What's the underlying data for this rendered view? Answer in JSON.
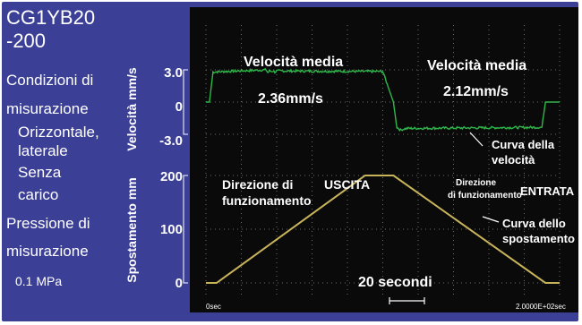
{
  "left_panel": {
    "title_line1": "CG1YB20",
    "title_line2": "-200",
    "cond_line1": "Condizioni di",
    "cond_line2": "misurazione",
    "cond_line3": "Orizzontale,",
    "cond_line4": "laterale",
    "cond_line5": "Senza",
    "cond_line6": "carico",
    "press_line1": "Pressione di",
    "press_line2": "misurazione",
    "press_value": "0.1 MPa"
  },
  "axes": {
    "velocity_label": "Velocità mm/s",
    "displacement_label": "Spostamento mm",
    "velocity_ticks": [
      "3.0",
      "0",
      "-3.0"
    ],
    "displacement_ticks": [
      "200",
      "100",
      "0"
    ]
  },
  "annotations": {
    "avg_speed_left": "Velocità media",
    "avg_speed_left_value": "2.36mm/s",
    "avg_speed_right": "Velocità media",
    "avg_speed_right_value": "2.12mm/s",
    "velocity_curve_line1": "Curva della",
    "velocity_curve_line2": "velocità",
    "dir_out_line1": "Direzione di",
    "dir_out_line2": "funzionamento",
    "dir_out_word": "USCITA",
    "dir_in_line1": "Direzione",
    "dir_in_line2": "di funzionamento",
    "dir_in_word": "ENTRATA",
    "disp_curve_line1": "Curva dello",
    "disp_curve_line2": "spostamento",
    "time_scale": "20 secondi",
    "x_start": "0sec",
    "x_end": "2.0000E+02sec"
  },
  "colors": {
    "panel": "#3b3f96",
    "plot_bg": "#0a0a0a",
    "velocity": "#2fb84a",
    "displacement": "#c8b45a",
    "grid": "#6a6a6a"
  },
  "chart_data": [
    {
      "type": "line",
      "name": "velocity",
      "ylabel": "Velocità mm/s",
      "ylim": [
        -3.0,
        3.0
      ],
      "xlim": [
        0,
        200
      ],
      "x": [
        0,
        2,
        4,
        34,
        35,
        36,
        37,
        38,
        39,
        40,
        90,
        100,
        106,
        108,
        110,
        112,
        114,
        190,
        192,
        194,
        196,
        200
      ],
      "y": [
        0,
        0,
        2.8,
        3.0,
        2.75,
        2.9,
        2.85,
        2.9,
        2.8,
        2.9,
        2.85,
        2.85,
        0,
        -2.35,
        -2.6,
        -2.5,
        -2.45,
        -2.35,
        0,
        0,
        0,
        0
      ]
    },
    {
      "type": "line",
      "name": "displacement",
      "ylabel": "Spostamento mm",
      "ylim": [
        0,
        200
      ],
      "xlim": [
        0,
        200
      ],
      "x": [
        0,
        6,
        90,
        98,
        106,
        192,
        200
      ],
      "y": [
        0,
        0,
        200,
        200,
        200,
        0,
        0
      ]
    }
  ]
}
